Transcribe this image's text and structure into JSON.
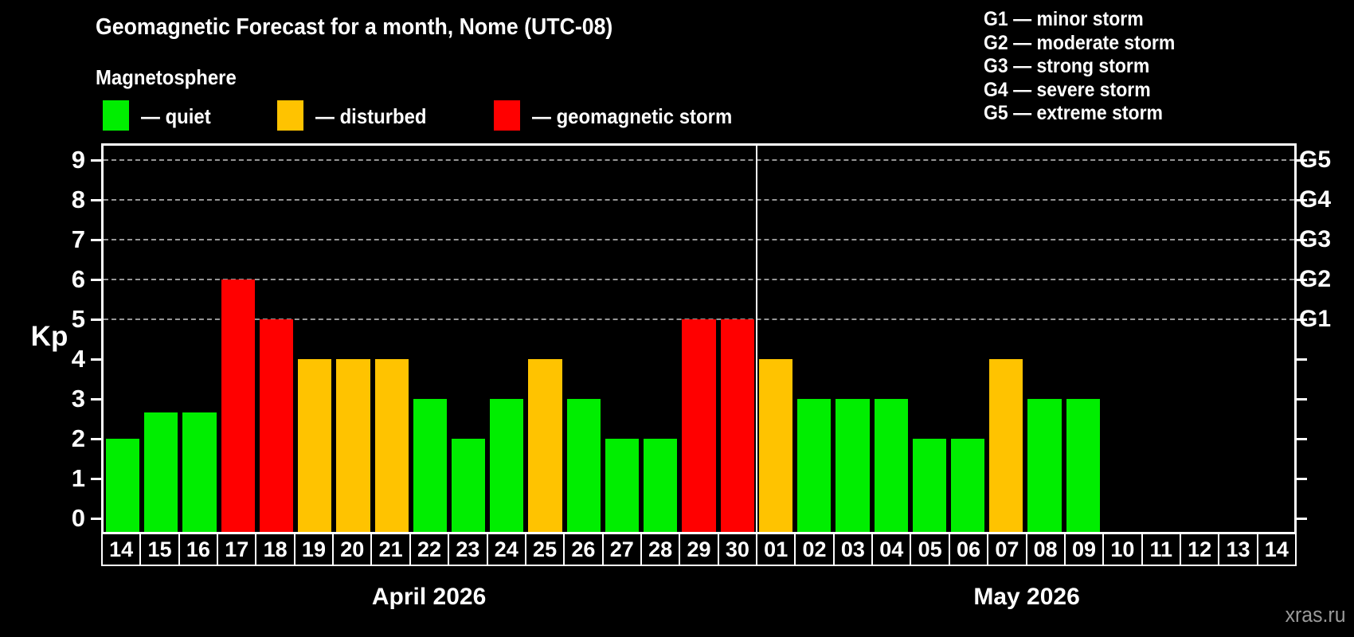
{
  "header": {
    "title": "Geomagnetic Forecast for a month, Nome (UTC-08)",
    "subtitle": "Magnetosphere"
  },
  "legend": {
    "items": [
      {
        "name": "quiet",
        "color": "#00ee00",
        "label": "— quiet"
      },
      {
        "name": "disturbed",
        "color": "#ffc300",
        "label": "— disturbed"
      },
      {
        "name": "storm",
        "color": "#ff0000",
        "label": "— geomagnetic storm"
      }
    ]
  },
  "g_scale_legend": {
    "lines": [
      "G1 — minor storm",
      "G2 — moderate storm",
      "G3 — strong storm",
      "G4 — severe storm",
      "G5 — extreme storm"
    ]
  },
  "watermark": "xras.ru",
  "chart_data": {
    "type": "bar",
    "title": "Geomagnetic Forecast for a month, Nome (UTC-08)",
    "ylabel": "Kp",
    "ylim": [
      0,
      9
    ],
    "yticks": [
      0,
      1,
      2,
      3,
      4,
      5,
      6,
      7,
      8,
      9
    ],
    "gridlines": [
      5,
      6,
      7,
      8,
      9
    ],
    "grid": "dashed, levels 5-9 only",
    "right_axis": [
      {
        "value": 5,
        "label": "G1"
      },
      {
        "value": 6,
        "label": "G2"
      },
      {
        "value": 7,
        "label": "G3"
      },
      {
        "value": 8,
        "label": "G4"
      },
      {
        "value": 9,
        "label": "G5"
      }
    ],
    "status_colors": {
      "quiet": "#00ee00",
      "disturbed": "#ffc300",
      "storm": "#ff0000"
    },
    "months": [
      {
        "label": "April 2026",
        "bars": [
          {
            "day": "14",
            "value": 2,
            "status": "quiet"
          },
          {
            "day": "15",
            "value": 2.67,
            "status": "quiet"
          },
          {
            "day": "16",
            "value": 2.67,
            "status": "quiet"
          },
          {
            "day": "17",
            "value": 6,
            "status": "storm"
          },
          {
            "day": "18",
            "value": 5,
            "status": "storm"
          },
          {
            "day": "19",
            "value": 4,
            "status": "disturbed"
          },
          {
            "day": "20",
            "value": 4,
            "status": "disturbed"
          },
          {
            "day": "21",
            "value": 4,
            "status": "disturbed"
          },
          {
            "day": "22",
            "value": 3,
            "status": "quiet"
          },
          {
            "day": "23",
            "value": 2,
            "status": "quiet"
          },
          {
            "day": "24",
            "value": 3,
            "status": "quiet"
          },
          {
            "day": "25",
            "value": 4,
            "status": "disturbed"
          },
          {
            "day": "26",
            "value": 3,
            "status": "quiet"
          },
          {
            "day": "27",
            "value": 2,
            "status": "quiet"
          },
          {
            "day": "28",
            "value": 2,
            "status": "quiet"
          },
          {
            "day": "29",
            "value": 5,
            "status": "storm"
          },
          {
            "day": "30",
            "value": 5,
            "status": "storm"
          }
        ]
      },
      {
        "label": "May 2026",
        "bars": [
          {
            "day": "01",
            "value": 4,
            "status": "disturbed"
          },
          {
            "day": "02",
            "value": 3,
            "status": "quiet"
          },
          {
            "day": "03",
            "value": 3,
            "status": "quiet"
          },
          {
            "day": "04",
            "value": 3,
            "status": "quiet"
          },
          {
            "day": "05",
            "value": 2,
            "status": "quiet"
          },
          {
            "day": "06",
            "value": 2,
            "status": "quiet"
          },
          {
            "day": "07",
            "value": 4,
            "status": "disturbed"
          },
          {
            "day": "08",
            "value": 3,
            "status": "quiet"
          },
          {
            "day": "09",
            "value": 3,
            "status": "quiet"
          },
          {
            "day": "10",
            "value": null,
            "status": null
          },
          {
            "day": "11",
            "value": null,
            "status": null
          },
          {
            "day": "12",
            "value": null,
            "status": null
          },
          {
            "day": "13",
            "value": null,
            "status": null
          },
          {
            "day": "14",
            "value": null,
            "status": null
          }
        ]
      }
    ]
  }
}
